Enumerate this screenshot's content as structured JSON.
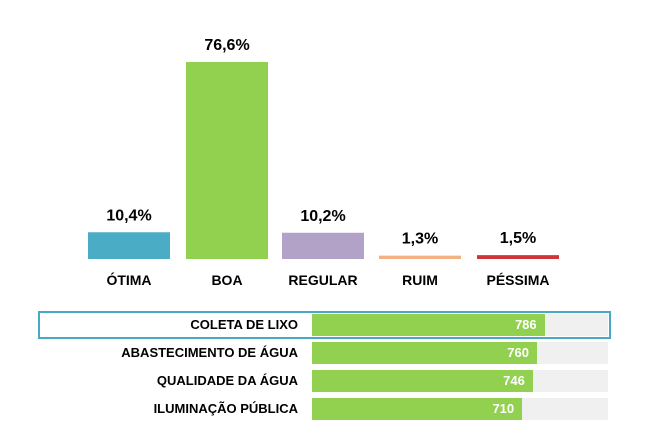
{
  "chart_data": [
    {
      "type": "bar",
      "categories": [
        "ÓTIMA",
        "BOA",
        "REGULAR",
        "RUIM",
        "PÉSSIMA"
      ],
      "values": [
        10.4,
        76.6,
        10.2,
        1.3,
        1.5
      ],
      "value_labels": [
        "10,4%",
        "76,6%",
        "10,2%",
        "1,3%",
        "1,5%"
      ],
      "colors": [
        "#4bacc6",
        "#92d050",
        "#b3a2c7",
        "#f4b183",
        "#d13438"
      ],
      "ylim": [
        0,
        76.6
      ],
      "grid": false,
      "legend": "none"
    },
    {
      "type": "bar",
      "orientation": "horizontal",
      "categories": [
        "COLETA DE LIXO",
        "ABASTECIMENTO DE ÁGUA",
        "QUALIDADE DA ÁGUA",
        "ILUMINAÇÃO PÚBLICA"
      ],
      "values": [
        786,
        760,
        746,
        710
      ],
      "value_labels": [
        "786",
        "760",
        "746",
        "710"
      ],
      "color": "#92d050",
      "highlighted_category": "COLETA DE LIXO",
      "highlight_color": "#4aa8c4",
      "xlim": [
        0,
        1000
      ],
      "grid": false,
      "legend": "none"
    }
  ]
}
